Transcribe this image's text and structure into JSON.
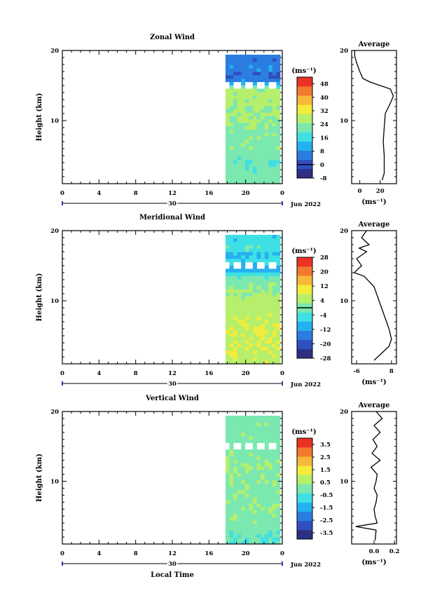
{
  "x_label": "Local Time",
  "date_label": "Jun 2022",
  "day_label": "30",
  "height_label": "Height (km)",
  "unit_label": "(ms⁻¹)",
  "avg_title": "Average",
  "colormap": [
    "#2d2f83",
    "#2f4fbf",
    "#2b7de0",
    "#25b0f0",
    "#3fe0e4",
    "#7be8b0",
    "#b6ef6c",
    "#f3ec3a",
    "#f6b93a",
    "#f27a2f",
    "#ea3323"
  ],
  "chart_data": [
    {
      "type": "heatmap",
      "title": "Zonal Wind",
      "ylabel": "Height (km)",
      "xlabel": "",
      "x_ticks": [
        "0",
        "4",
        "8",
        "12",
        "16",
        "20",
        "0"
      ],
      "y_ticks": [
        "10",
        "20"
      ],
      "ylim": [
        1,
        20
      ],
      "xlim": [
        0,
        24
      ],
      "data_start_hour": 17.8,
      "colorbar_ticks": [
        "48",
        "40",
        "32",
        "24",
        "16",
        "8",
        "0",
        "-8"
      ],
      "colorbar_range": [
        -8,
        52
      ],
      "zero_line": true,
      "field": {
        "heights": [
          2,
          4,
          6,
          8,
          10,
          12,
          13.5,
          14.5,
          15.5,
          16.5,
          17.5,
          18.5
        ],
        "values": [
          22,
          20,
          23,
          23,
          24,
          26,
          27,
          26,
          8,
          2,
          8,
          5
        ]
      },
      "average": {
        "title": "Average",
        "xlabel": "(ms⁻¹)",
        "x_ticks": [
          "0",
          "20"
        ],
        "xlim": [
          -8,
          36
        ],
        "y_ticks": [
          "10",
          "20"
        ],
        "profile": [
          [
            22,
            1.5
          ],
          [
            24,
            2.5
          ],
          [
            24,
            5
          ],
          [
            23,
            7
          ],
          [
            24,
            9
          ],
          [
            25,
            11
          ],
          [
            30,
            12.5
          ],
          [
            33,
            13.5
          ],
          [
            30,
            14.5
          ],
          [
            20,
            15
          ],
          [
            10,
            15.5
          ],
          [
            3,
            16
          ],
          [
            0,
            17
          ],
          [
            -3,
            18.2
          ],
          [
            -5,
            19.2
          ],
          [
            -5,
            20
          ]
        ]
      }
    },
    {
      "type": "heatmap",
      "title": "Meridional Wind",
      "ylabel": "Height (km)",
      "xlabel": "",
      "x_ticks": [
        "0",
        "4",
        "8",
        "12",
        "16",
        "20",
        "0"
      ],
      "y_ticks": [
        "10",
        "20"
      ],
      "ylim": [
        1,
        20
      ],
      "xlim": [
        0,
        24
      ],
      "data_start_hour": 17.8,
      "colorbar_ticks": [
        "28",
        "20",
        "12",
        "4",
        "-4",
        "-12",
        "-20",
        "-28"
      ],
      "colorbar_range": [
        -28,
        28
      ],
      "zero_line": true,
      "field": {
        "heights": [
          2,
          4,
          6,
          8,
          10,
          12,
          13.5,
          14.5,
          15.5,
          16.5,
          17.5,
          18.5
        ],
        "values": [
          6,
          8,
          7,
          6,
          5,
          2,
          -2,
          -12,
          -4,
          -10,
          -2,
          -6
        ]
      },
      "average": {
        "title": "Average",
        "xlabel": "(ms⁻¹)",
        "x_ticks": [
          "-6",
          "8"
        ],
        "xlim": [
          -8,
          10
        ],
        "y_ticks": [
          "10",
          "20"
        ],
        "profile": [
          [
            1,
            1.5
          ],
          [
            4,
            2.5
          ],
          [
            7,
            3.5
          ],
          [
            8,
            4.5
          ],
          [
            7,
            6
          ],
          [
            5,
            8
          ],
          [
            3,
            10
          ],
          [
            1,
            12
          ],
          [
            -3,
            13.5
          ],
          [
            -7,
            14
          ],
          [
            -4,
            15
          ],
          [
            -6,
            16
          ],
          [
            -2,
            17
          ],
          [
            -5,
            17.5
          ],
          [
            -1,
            18
          ],
          [
            -4,
            19
          ],
          [
            -2,
            20
          ]
        ]
      }
    },
    {
      "type": "heatmap",
      "title": "Vertical Wind",
      "ylabel": "Height (km)",
      "xlabel": "Local Time",
      "x_ticks": [
        "0",
        "4",
        "8",
        "12",
        "16",
        "20",
        "0"
      ],
      "y_ticks": [
        "10",
        "20"
      ],
      "ylim": [
        1,
        20
      ],
      "xlim": [
        0,
        24
      ],
      "data_start_hour": 17.8,
      "colorbar_ticks": [
        "3.5",
        "2.5",
        "1.5",
        "0.5",
        "-0.5",
        "-1.5",
        "-2.5",
        "-3.5"
      ],
      "colorbar_range": [
        -4,
        4
      ],
      "zero_line": false,
      "field": {
        "heights": [
          2,
          4,
          6,
          8,
          10,
          12,
          13.5,
          14.5,
          15.5,
          16.5,
          17.5,
          18.5
        ],
        "values": [
          -0.3,
          0.1,
          0.2,
          0.1,
          0.2,
          0.3,
          0.2,
          0.1,
          0.1,
          0.2,
          0.0,
          0.1
        ]
      },
      "average": {
        "title": "Average",
        "xlabel": "(ms⁻¹)",
        "x_ticks": [
          "0.0",
          "0.2"
        ],
        "xlim": [
          -0.22,
          0.22
        ],
        "y_ticks": [
          "10",
          "20"
        ],
        "profile": [
          [
            0.01,
            1.5
          ],
          [
            0.02,
            3
          ],
          [
            -0.18,
            3.5
          ],
          [
            0.03,
            4
          ],
          [
            0.01,
            5
          ],
          [
            0.0,
            6
          ],
          [
            0.02,
            7
          ],
          [
            0.03,
            8
          ],
          [
            0.0,
            9
          ],
          [
            0.02,
            10
          ],
          [
            0.03,
            11
          ],
          [
            -0.03,
            12
          ],
          [
            0.06,
            13
          ],
          [
            -0.02,
            14
          ],
          [
            0.03,
            15
          ],
          [
            -0.01,
            16
          ],
          [
            0.06,
            17
          ],
          [
            0.0,
            18
          ],
          [
            0.08,
            19
          ],
          [
            0.02,
            20
          ]
        ]
      }
    }
  ]
}
